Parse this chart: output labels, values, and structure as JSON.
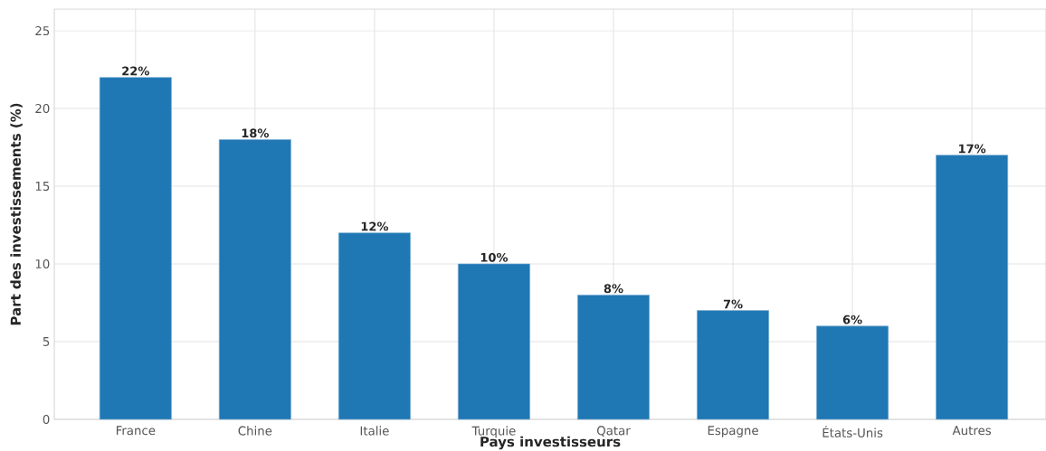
{
  "chart_data": {
    "type": "bar",
    "xlabel": "Pays investisseurs",
    "ylabel": "Part des investissements (%)",
    "categories": [
      "France",
      "Chine",
      "Italie",
      "Turquie",
      "Qatar",
      "Espagne",
      "États-Unis",
      "Autres"
    ],
    "values": [
      22,
      18,
      12,
      10,
      8,
      7,
      6,
      17
    ],
    "color": "#1f77b4",
    "value_labels": [
      "22%",
      "18%",
      "12%",
      "10%",
      "8%",
      "7%",
      "6%",
      "17%"
    ],
    "ylim": [
      0,
      26.4
    ],
    "yticks": [
      0,
      5,
      10,
      15,
      20,
      25
    ],
    "grid": true
  }
}
